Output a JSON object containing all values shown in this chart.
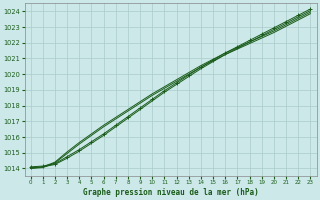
{
  "title": "Graphe pression niveau de la mer (hPa)",
  "bg_color": "#cce8e8",
  "grid_color": "#aacccc",
  "line_color": "#1a5c1a",
  "xlim": [
    -0.5,
    23.5
  ],
  "ylim": [
    1013.5,
    1024.5
  ],
  "yticks": [
    1014,
    1015,
    1016,
    1017,
    1018,
    1019,
    1020,
    1021,
    1022,
    1023,
    1024
  ],
  "xticks": [
    0,
    1,
    2,
    3,
    4,
    5,
    6,
    7,
    8,
    9,
    10,
    11,
    12,
    13,
    14,
    15,
    16,
    17,
    18,
    19,
    20,
    21,
    22,
    23
  ],
  "hours": [
    0,
    1,
    2,
    3,
    4,
    5,
    6,
    7,
    8,
    9,
    10,
    11,
    12,
    13,
    14,
    15,
    16,
    17,
    18,
    19,
    20,
    21,
    22,
    23
  ],
  "line_marked": [
    1014.1,
    1014.15,
    1014.3,
    1014.75,
    1015.2,
    1015.7,
    1016.2,
    1016.75,
    1017.3,
    1017.85,
    1018.4,
    1018.95,
    1019.45,
    1019.95,
    1020.45,
    1020.9,
    1021.35,
    1021.75,
    1022.15,
    1022.55,
    1022.95,
    1023.35,
    1023.75,
    1024.15
  ],
  "line_a": [
    1014.05,
    1014.1,
    1014.25,
    1014.65,
    1015.1,
    1015.6,
    1016.1,
    1016.65,
    1017.2,
    1017.75,
    1018.3,
    1018.85,
    1019.35,
    1019.85,
    1020.35,
    1020.8,
    1021.25,
    1021.65,
    1022.05,
    1022.45,
    1022.85,
    1023.25,
    1023.65,
    1024.05
  ],
  "line_b": [
    1014.0,
    1014.05,
    1014.35,
    1014.95,
    1015.55,
    1016.1,
    1016.65,
    1017.15,
    1017.65,
    1018.15,
    1018.65,
    1019.1,
    1019.55,
    1020.0,
    1020.45,
    1020.85,
    1021.25,
    1021.6,
    1021.95,
    1022.3,
    1022.65,
    1023.05,
    1023.45,
    1023.85
  ],
  "line_c": [
    1014.0,
    1014.1,
    1014.4,
    1015.05,
    1015.65,
    1016.2,
    1016.75,
    1017.25,
    1017.75,
    1018.25,
    1018.75,
    1019.2,
    1019.65,
    1020.1,
    1020.55,
    1020.95,
    1021.35,
    1021.7,
    1022.05,
    1022.4,
    1022.75,
    1023.15,
    1023.55,
    1023.95
  ]
}
